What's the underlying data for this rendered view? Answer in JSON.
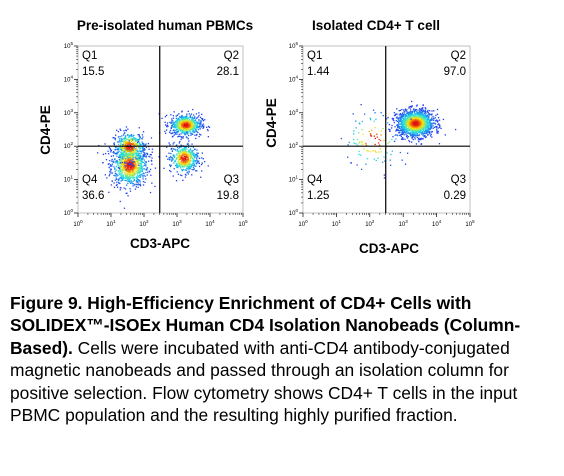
{
  "figure": {
    "type": "flow-cytometry-dot-plots"
  },
  "chart_data": [
    {
      "type": "scatter",
      "title": "Pre-isolated human PBMCs",
      "xlabel": "CD3-APC",
      "ylabel": "CD4-PE",
      "x_scale": "log",
      "y_scale": "log",
      "xlim": [
        1,
        100000
      ],
      "ylim": [
        1,
        100000
      ],
      "x_ticks": [
        "10^0",
        "10^1",
        "10^2",
        "10^3",
        "10^4",
        "10^5"
      ],
      "y_ticks": [
        "10^0",
        "10^1",
        "10^2",
        "10^3",
        "10^4",
        "10^5"
      ],
      "gate": {
        "x": 300,
        "y": 100
      },
      "quadrants": [
        {
          "name": "Q1",
          "percent": "15.5"
        },
        {
          "name": "Q2",
          "percent": "28.1"
        },
        {
          "name": "Q3",
          "percent": "19.8"
        },
        {
          "name": "Q4",
          "percent": "36.6"
        }
      ],
      "populations": [
        {
          "cx_log": 1.55,
          "cy_log": 1.45,
          "sx": 0.28,
          "sy": 0.32,
          "n": 900
        },
        {
          "cx_log": 1.55,
          "cy_log": 2.0,
          "sx": 0.25,
          "sy": 0.22,
          "n": 380
        },
        {
          "cx_log": 3.25,
          "cy_log": 2.65,
          "sx": 0.24,
          "sy": 0.16,
          "n": 620
        },
        {
          "cx_log": 3.2,
          "cy_log": 1.65,
          "sx": 0.22,
          "sy": 0.22,
          "n": 460
        }
      ]
    },
    {
      "type": "scatter",
      "title": "Isolated CD4+ T cell",
      "xlabel": "CD3-APC",
      "ylabel": "CD4-PE",
      "x_scale": "log",
      "y_scale": "log",
      "xlim": [
        1,
        100000
      ],
      "ylim": [
        1,
        100000
      ],
      "x_ticks": [
        "10^0",
        "10^1",
        "10^2",
        "10^3",
        "10^4",
        "10^5"
      ],
      "y_ticks": [
        "10^0",
        "10^1",
        "10^2",
        "10^3",
        "10^4",
        "10^5"
      ],
      "gate": {
        "x": 300,
        "y": 100
      },
      "quadrants": [
        {
          "name": "Q1",
          "percent": "1.44"
        },
        {
          "name": "Q2",
          "percent": "97.0"
        },
        {
          "name": "Q3",
          "percent": "0.29"
        },
        {
          "name": "Q4",
          "percent": "1.25"
        }
      ],
      "populations": [
        {
          "cx_log": 3.35,
          "cy_log": 2.7,
          "sx": 0.28,
          "sy": 0.2,
          "n": 1400
        },
        {
          "cx_log": 2.1,
          "cy_log": 2.2,
          "sx": 0.45,
          "sy": 0.45,
          "n": 110
        }
      ]
    }
  ],
  "caption": {
    "bold": "Figure 9. High-Efficiency Enrichment of CD4+ Cells with SOLIDEX™-ISOEx Human CD4 Isolation Nanobeads (Column-Based).",
    "text": " Cells were incubated with anti-CD4 antibody-conjugated magnetic nanobeads and passed through an isolation column for positive selection. Flow cytometry shows CD4+ T cells in the input PBMC population and the resulting highly purified fraction."
  },
  "colors": {
    "density_low": "#1f3ff0",
    "density_mid": "#19e6e6",
    "density_high": "#ffe600",
    "density_peak": "#e01010",
    "gate_line": "#000000"
  }
}
